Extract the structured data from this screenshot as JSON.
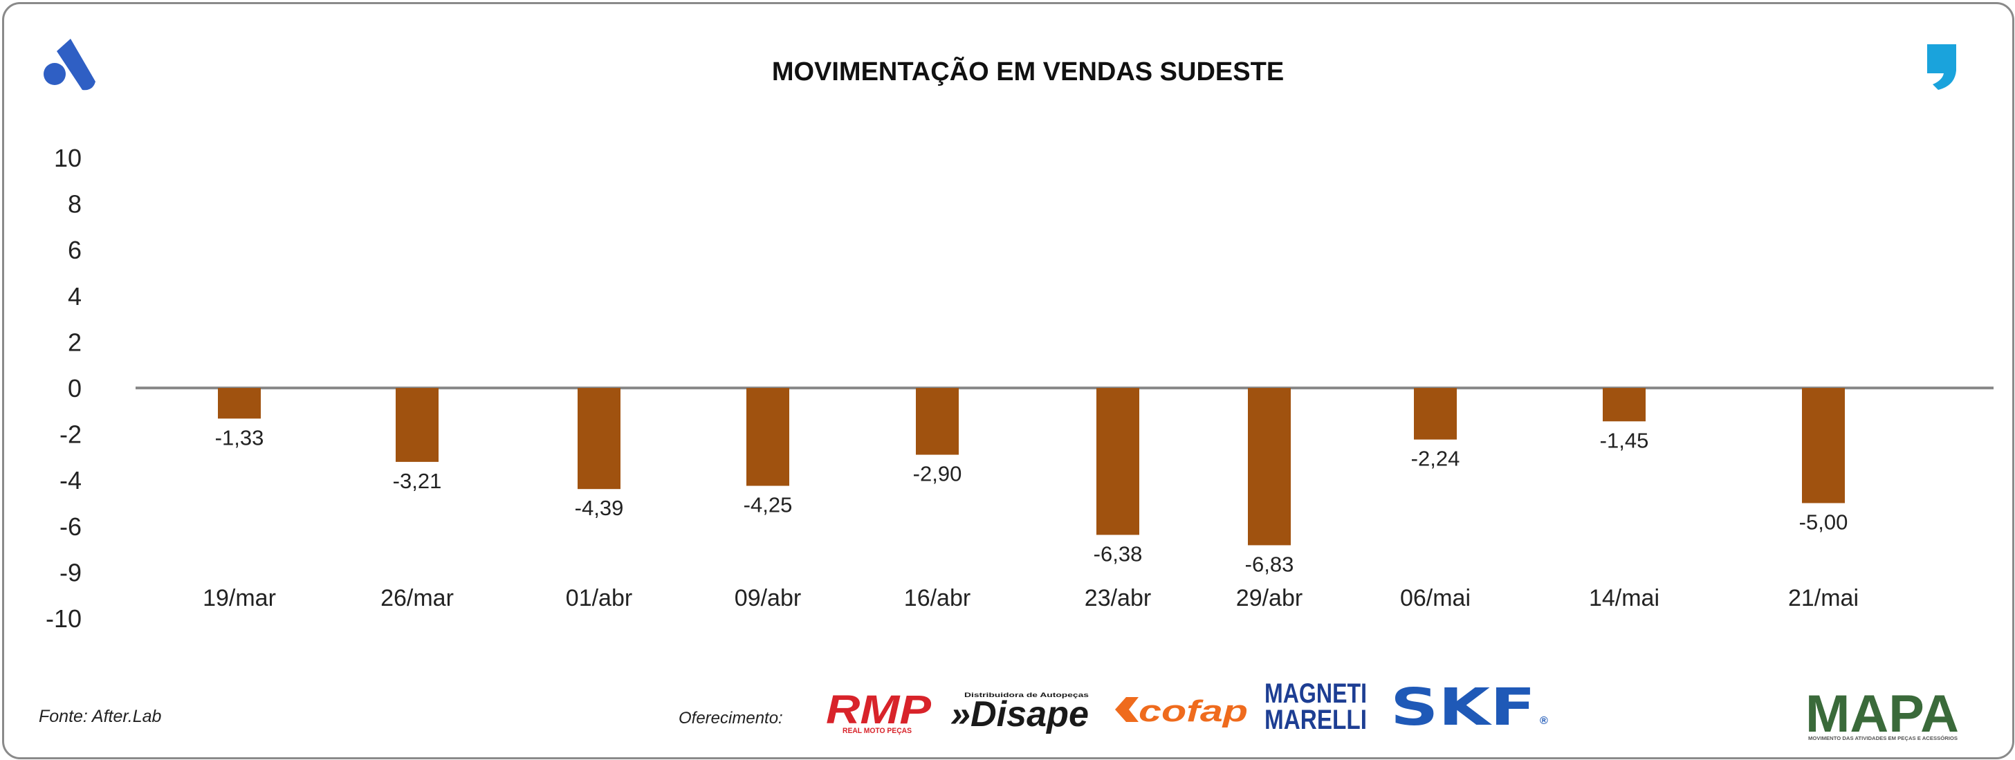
{
  "chart_data": {
    "type": "bar",
    "title": "MOVIMENTAÇÃO EM VENDAS SUDESTE",
    "categories": [
      "19/mar",
      "26/mar",
      "01/abr",
      "09/abr",
      "16/abr",
      "23/abr",
      "29/abr",
      "06/mai",
      "14/mai",
      "21/mai"
    ],
    "values": [
      -1.33,
      -3.21,
      -4.39,
      -4.25,
      -2.9,
      -6.38,
      -6.83,
      -2.24,
      -1.45,
      -5.0
    ],
    "value_labels": [
      "-1,33",
      "-3,21",
      "-4,39",
      "-4,25",
      "-2,90",
      "-6,38",
      "-6,83",
      "-2,24",
      "-1,45",
      "-5,00"
    ],
    "yticks": [
      "10",
      "8",
      "6",
      "4",
      "2",
      "0",
      "-2",
      "-4",
      "-6",
      "-9",
      "-10"
    ],
    "ylim": [
      -10,
      10
    ],
    "xlabel": "",
    "ylabel": "",
    "grid": false,
    "bar_color": "#a0520f",
    "zero_line_color": "#8a8a8a"
  },
  "footer": {
    "source": "Fonte: After.Lab",
    "sponsor_label": "Oferecimento:"
  },
  "logos": {
    "rmp": {
      "mark": "RMP",
      "sub": "REAL MOTO PEÇAS",
      "color": "#d8232a"
    },
    "disape": {
      "mark": "»Disape",
      "sub": "Distribuidora de Autopeças",
      "color": "#1a1a1a"
    },
    "cofap": {
      "mark": "cofap",
      "color": "#ef6b1d"
    },
    "magneti_marelli": {
      "line1": "MAGNETI",
      "line2": "MARELLI",
      "color": "#1d3e93"
    },
    "skf": {
      "mark": "SKF",
      "reg": "®",
      "color": "#1f59b7"
    },
    "mapa": {
      "mark": "MAPA",
      "sub": "MOVIMENTO DAS ATIVIDADES EM PEÇAS E ACESSÓRIOS",
      "color": "#3a6a3a"
    }
  }
}
